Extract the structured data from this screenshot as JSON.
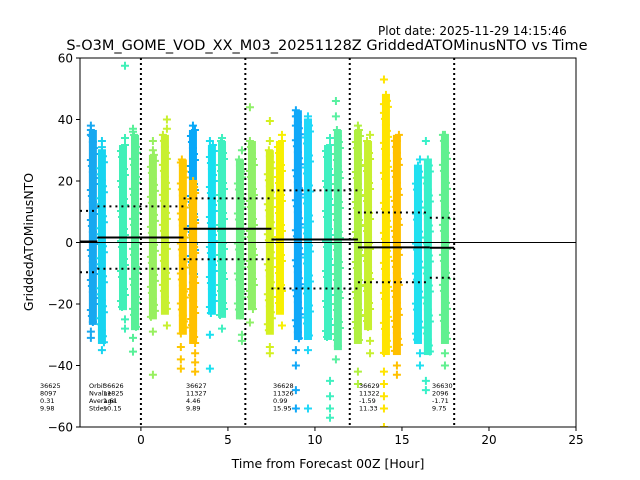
{
  "chart_data": {
    "type": "scatter",
    "title": "S-O3M_GOME_VOD_XX_M03_20251128Z GriddedATOMinusNTO vs Time",
    "plot_date": "Plot date: 2025-11-29 14:15:46",
    "xlabel": "Time from Forecast 00Z [Hour]",
    "ylabel": "GriddedATOMinusNTO",
    "xlim": [
      -3.5,
      25
    ],
    "ylim": [
      -60,
      60
    ],
    "xticks": [
      "0",
      "5",
      "10",
      "15",
      "20",
      "25"
    ],
    "xtick_values": [
      0,
      5,
      10,
      15,
      20,
      25
    ],
    "yticks": [
      "60",
      "40",
      "20",
      "0",
      "−20",
      "−40",
      "−60"
    ],
    "ytick_values": [
      60,
      40,
      20,
      0,
      -20,
      -40,
      -60
    ],
    "grid": false,
    "zero_line": 0,
    "orbit_boundaries": [
      0,
      6,
      12,
      18
    ],
    "stripes": [
      {
        "t": -2.76,
        "ymin": -26.8,
        "ymax": 36.6,
        "color": "#18a8f0",
        "out_hi": [
          38,
          35
        ],
        "out_lo": [
          -29,
          -31
        ]
      },
      {
        "t": -2.24,
        "ymin": -33,
        "ymax": 30,
        "color": "#18d4f0",
        "out_hi": [
          33,
          31
        ],
        "out_lo": [
          -35
        ]
      },
      {
        "t": -1.03,
        "ymin": -22,
        "ymax": 31.7,
        "color": "#40f0b8",
        "out_hi": [
          57.5,
          34
        ],
        "out_lo": [
          -25,
          -28
        ]
      },
      {
        "t": -0.34,
        "ymin": -28.5,
        "ymax": 35,
        "color": "#58f098",
        "out_hi": [
          37,
          36
        ],
        "out_lo": [
          -35.5,
          -31
        ]
      },
      {
        "t": 0.69,
        "ymin": -25,
        "ymax": 28.5,
        "color": "#98f060",
        "out_hi": [
          33,
          30
        ],
        "out_lo": [
          -43,
          -29
        ]
      },
      {
        "t": 1.38,
        "ymin": -23.5,
        "ymax": 35,
        "color": "#c8f030",
        "out_hi": [
          40,
          37
        ],
        "out_lo": [
          -27
        ]
      },
      {
        "t": 2.41,
        "ymin": -30,
        "ymax": 27,
        "color": "#ffc800",
        "out_hi": [
          26
        ],
        "out_lo": [
          -38,
          -41,
          -34
        ]
      },
      {
        "t": 2.99,
        "ymin": -10.5,
        "ymax": 36.6,
        "color": "#08a8f8",
        "out_hi": [
          38
        ],
        "out_lo": [
          -13,
          -15
        ]
      },
      {
        "t": 3.0,
        "ymin": -33,
        "ymax": 20,
        "color": "#ffc000",
        "out_hi": [],
        "out_lo": [
          -36,
          -39,
          -42
        ]
      },
      {
        "t": 4.08,
        "ymin": -23.5,
        "ymax": 31.7,
        "color": "#18e0f0",
        "out_hi": [
          33
        ],
        "out_lo": [
          -30,
          -41
        ]
      },
      {
        "t": 4.66,
        "ymin": -24.5,
        "ymax": 33,
        "color": "#40f0c0",
        "out_hi": [
          34
        ],
        "out_lo": [
          -28
        ]
      },
      {
        "t": 5.69,
        "ymin": -25,
        "ymax": 27,
        "color": "#70f088",
        "out_hi": [
          30
        ],
        "out_lo": [
          -30,
          -32
        ]
      },
      {
        "t": 6.38,
        "ymin": -22,
        "ymax": 33,
        "color": "#90f068",
        "out_hi": [
          44
        ],
        "out_lo": [
          -26
        ]
      },
      {
        "t": 7.41,
        "ymin": -30,
        "ymax": 30,
        "color": "#d4f020",
        "out_hi": [
          39.5,
          33
        ],
        "out_lo": [
          -34,
          -36
        ]
      },
      {
        "t": 7.99,
        "ymin": -23.5,
        "ymax": 33,
        "color": "#f8f000",
        "out_hi": [
          35
        ],
        "out_lo": [
          -27
        ]
      },
      {
        "t": 9.02,
        "ymin": -31.7,
        "ymax": 43,
        "color": "#10a8f8",
        "out_hi": [
          41,
          38
        ],
        "out_lo": [
          -35,
          -40,
          -48,
          -54
        ]
      },
      {
        "t": 9.6,
        "ymin": -31.7,
        "ymax": 40,
        "color": "#20d8f8",
        "out_hi": [
          41
        ],
        "out_lo": [
          -35,
          -54
        ]
      },
      {
        "t": 10.75,
        "ymin": -31.7,
        "ymax": 31.7,
        "color": "#40f0c0",
        "out_hi": [
          34
        ],
        "out_lo": [
          -45,
          -50,
          -54,
          -57
        ]
      },
      {
        "t": 11.32,
        "ymin": -35,
        "ymax": 36.6,
        "color": "#58f0a0",
        "out_hi": [
          46,
          41
        ],
        "out_lo": [
          -38
        ]
      },
      {
        "t": 12.47,
        "ymin": -33,
        "ymax": 36.6,
        "color": "#b0f040",
        "out_hi": [
          38
        ],
        "out_lo": [
          -42,
          -46
        ]
      },
      {
        "t": 13.05,
        "ymin": -28.5,
        "ymax": 33,
        "color": "#c8f030",
        "out_hi": [
          35
        ],
        "out_lo": [
          -32,
          -36
        ]
      },
      {
        "t": 14.08,
        "ymin": -36.6,
        "ymax": 48,
        "color": "#ffe400",
        "out_hi": [
          53,
          45
        ],
        "out_lo": [
          -42,
          -46,
          -50,
          -54,
          -60
        ]
      },
      {
        "t": 14.71,
        "ymin": -36.6,
        "ymax": 35,
        "color": "#ffc000",
        "out_hi": [
          33
        ],
        "out_lo": [
          -40,
          -43
        ]
      },
      {
        "t": 15.92,
        "ymin": -33,
        "ymax": 25,
        "color": "#20e0f0",
        "out_hi": [
          27
        ],
        "out_lo": [
          -36,
          -40
        ]
      },
      {
        "t": 16.49,
        "ymin": -36.6,
        "ymax": 27,
        "color": "#38f0c8",
        "out_hi": [
          33
        ],
        "out_lo": [
          -45,
          -48
        ]
      },
      {
        "t": 17.47,
        "ymin": -33,
        "ymax": 35,
        "color": "#60f090",
        "out_hi": [
          35
        ],
        "out_lo": [
          -36,
          -40
        ]
      }
    ],
    "orbits": [
      {
        "orbit": "36625",
        "nvalue": "8097",
        "average": "0.31",
        "stdev": "9.98",
        "t0": -3.5,
        "t1": -2.5,
        "mean": 0.31,
        "std": 9.98
      },
      {
        "orbit": "36626",
        "nvalue": "11825",
        "average": "1.61",
        "stdev": "10.15",
        "t0": -2.5,
        "t1": 2.45,
        "mean": 1.61,
        "std": 10.15
      },
      {
        "orbit": "36627",
        "nvalue": "11327",
        "average": "4.46",
        "stdev": "9.89",
        "t0": 2.45,
        "t1": 7.5,
        "mean": 4.46,
        "std": 9.89
      },
      {
        "orbit": "36628",
        "nvalue": "11326",
        "average": "0.99",
        "stdev": "15.95",
        "t0": 7.5,
        "t1": 12.47,
        "mean": 0.99,
        "std": 15.95
      },
      {
        "orbit": "36629",
        "nvalue": "11322",
        "average": "-1.59",
        "stdev": "11.33",
        "t0": 12.47,
        "t1": 16.6,
        "mean": -1.59,
        "std": 11.33
      },
      {
        "orbit": "36630",
        "nvalue": "2096",
        "average": "-1.71",
        "stdev": "9.75",
        "t0": 16.6,
        "t1": 18.0,
        "mean": -1.71,
        "std": 9.75
      }
    ],
    "legend_labels": {
      "orbit": "Orbit",
      "nvalue": "Nvalue",
      "average": "Average",
      "stdev": "Stdev"
    }
  }
}
